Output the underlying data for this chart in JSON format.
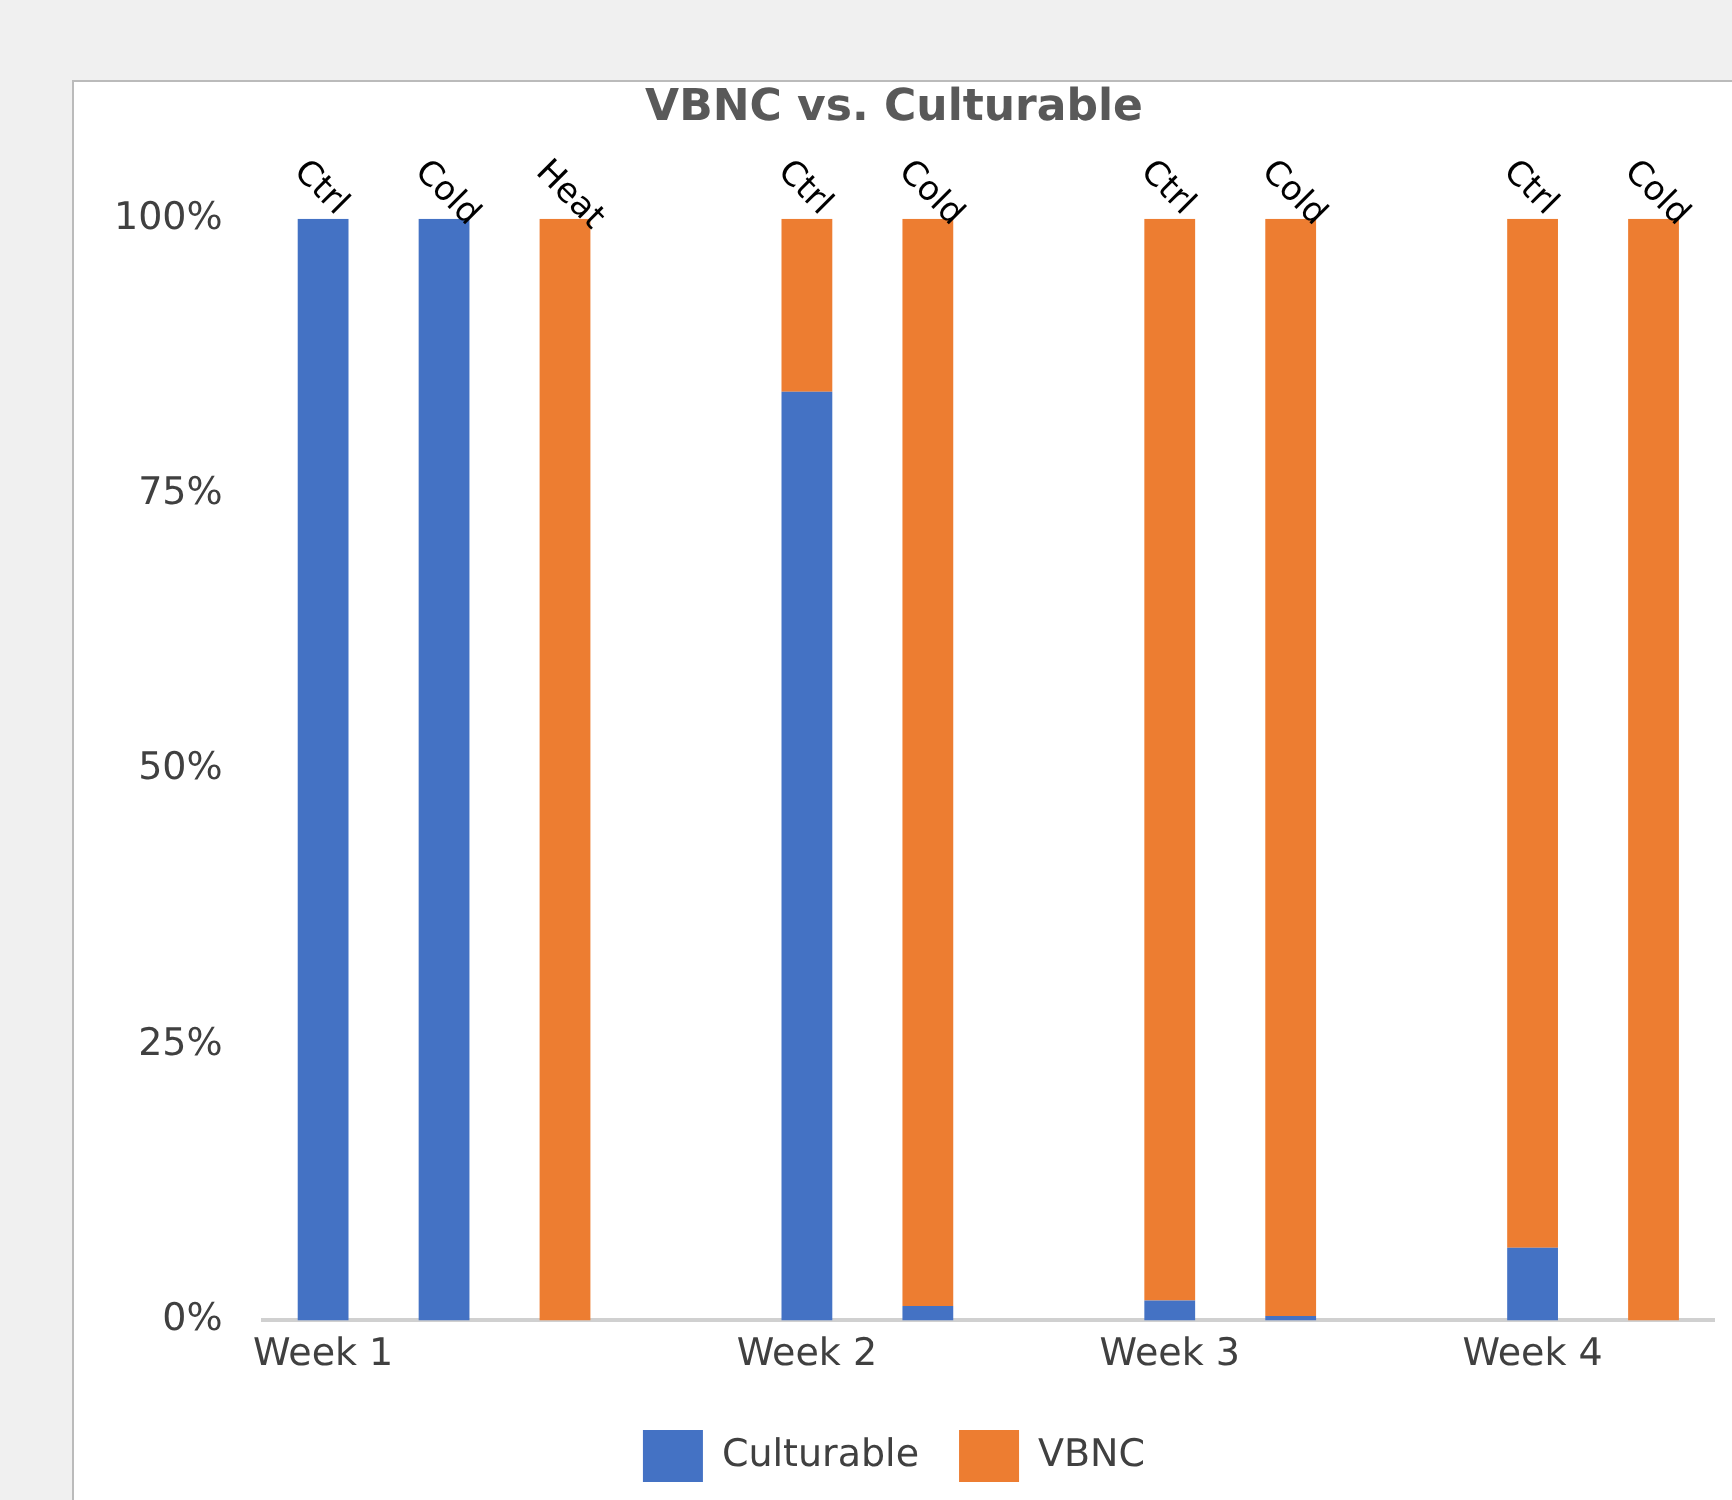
{
  "chart_data": {
    "type": "bar",
    "title": "VBNC vs. Culturable",
    "stacked": true,
    "categories": [
      "Week 1",
      null,
      null,
      null,
      "Week 2",
      null,
      null,
      "Week 3",
      null,
      null,
      "Week 4",
      null
    ],
    "series": [
      {
        "name": "Culturable",
        "color": "#4472c4",
        "values": [
          100,
          100,
          0,
          null,
          84.3,
          1.3,
          null,
          1.8,
          0.4,
          null,
          6.6,
          0
        ]
      },
      {
        "name": "VBNC",
        "color": "#ed7d31",
        "values": [
          0,
          0,
          100,
          null,
          15.7,
          98.7,
          null,
          98.2,
          99.6,
          null,
          93.4,
          100
        ]
      }
    ],
    "ylim": [
      0,
      100
    ],
    "yticks": [
      {
        "value": 0,
        "label": "0%"
      },
      {
        "value": 25,
        "label": "25%"
      },
      {
        "value": 50,
        "label": "50%"
      },
      {
        "value": 75,
        "label": "75%"
      },
      {
        "value": 100,
        "label": "100%"
      }
    ],
    "annotations": [
      "Ctrl",
      "Cold",
      "Heat",
      "Ctrl",
      "Cold",
      "Ctrl",
      "Cold",
      "Ctrl",
      "Cold"
    ],
    "grid": false,
    "legend": "bottom"
  }
}
